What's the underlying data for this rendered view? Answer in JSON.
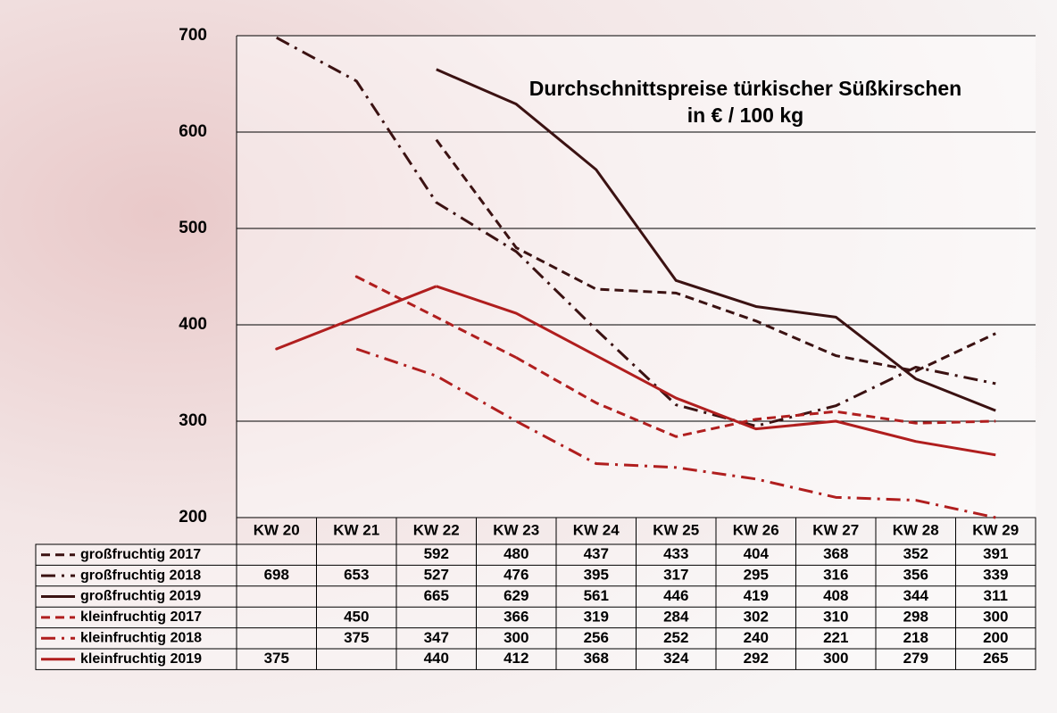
{
  "chart_data": {
    "type": "line",
    "title": "Durchschnittspreise türkischer Süßkirschen",
    "subtitle": "in € / 100 kg",
    "categories": [
      "KW 20",
      "KW 21",
      "KW 22",
      "KW 23",
      "KW 24",
      "KW 25",
      "KW 26",
      "KW 27",
      "KW 28",
      "KW 29"
    ],
    "ylim": [
      200,
      700
    ],
    "yticks": [
      200,
      300,
      400,
      500,
      600,
      700
    ],
    "grid": true,
    "series": [
      {
        "name": "großfruchtig 2017",
        "color": "#3b1212",
        "style": "dashed",
        "values": [
          null,
          null,
          592,
          480,
          437,
          433,
          404,
          368,
          352,
          391
        ]
      },
      {
        "name": "großfruchtig 2018",
        "color": "#3b1212",
        "style": "dashdot",
        "values": [
          698,
          653,
          527,
          476,
          395,
          317,
          295,
          316,
          356,
          339
        ]
      },
      {
        "name": "großfruchtig 2019",
        "color": "#3b1212",
        "style": "solid",
        "values": [
          null,
          null,
          665,
          629,
          561,
          446,
          419,
          408,
          344,
          311
        ]
      },
      {
        "name": "kleinfruchtig 2017",
        "color": "#b01e1e",
        "style": "dashed",
        "values": [
          null,
          450,
          null,
          366,
          319,
          284,
          302,
          310,
          298,
          300
        ]
      },
      {
        "name": "kleinfruchtig 2018",
        "color": "#b01e1e",
        "style": "dashdot",
        "values": [
          null,
          375,
          347,
          300,
          256,
          252,
          240,
          221,
          218,
          200
        ]
      },
      {
        "name": "kleinfruchtig 2019",
        "color": "#b01e1e",
        "style": "solid",
        "values": [
          375,
          null,
          440,
          412,
          368,
          324,
          292,
          300,
          279,
          265
        ]
      }
    ]
  }
}
